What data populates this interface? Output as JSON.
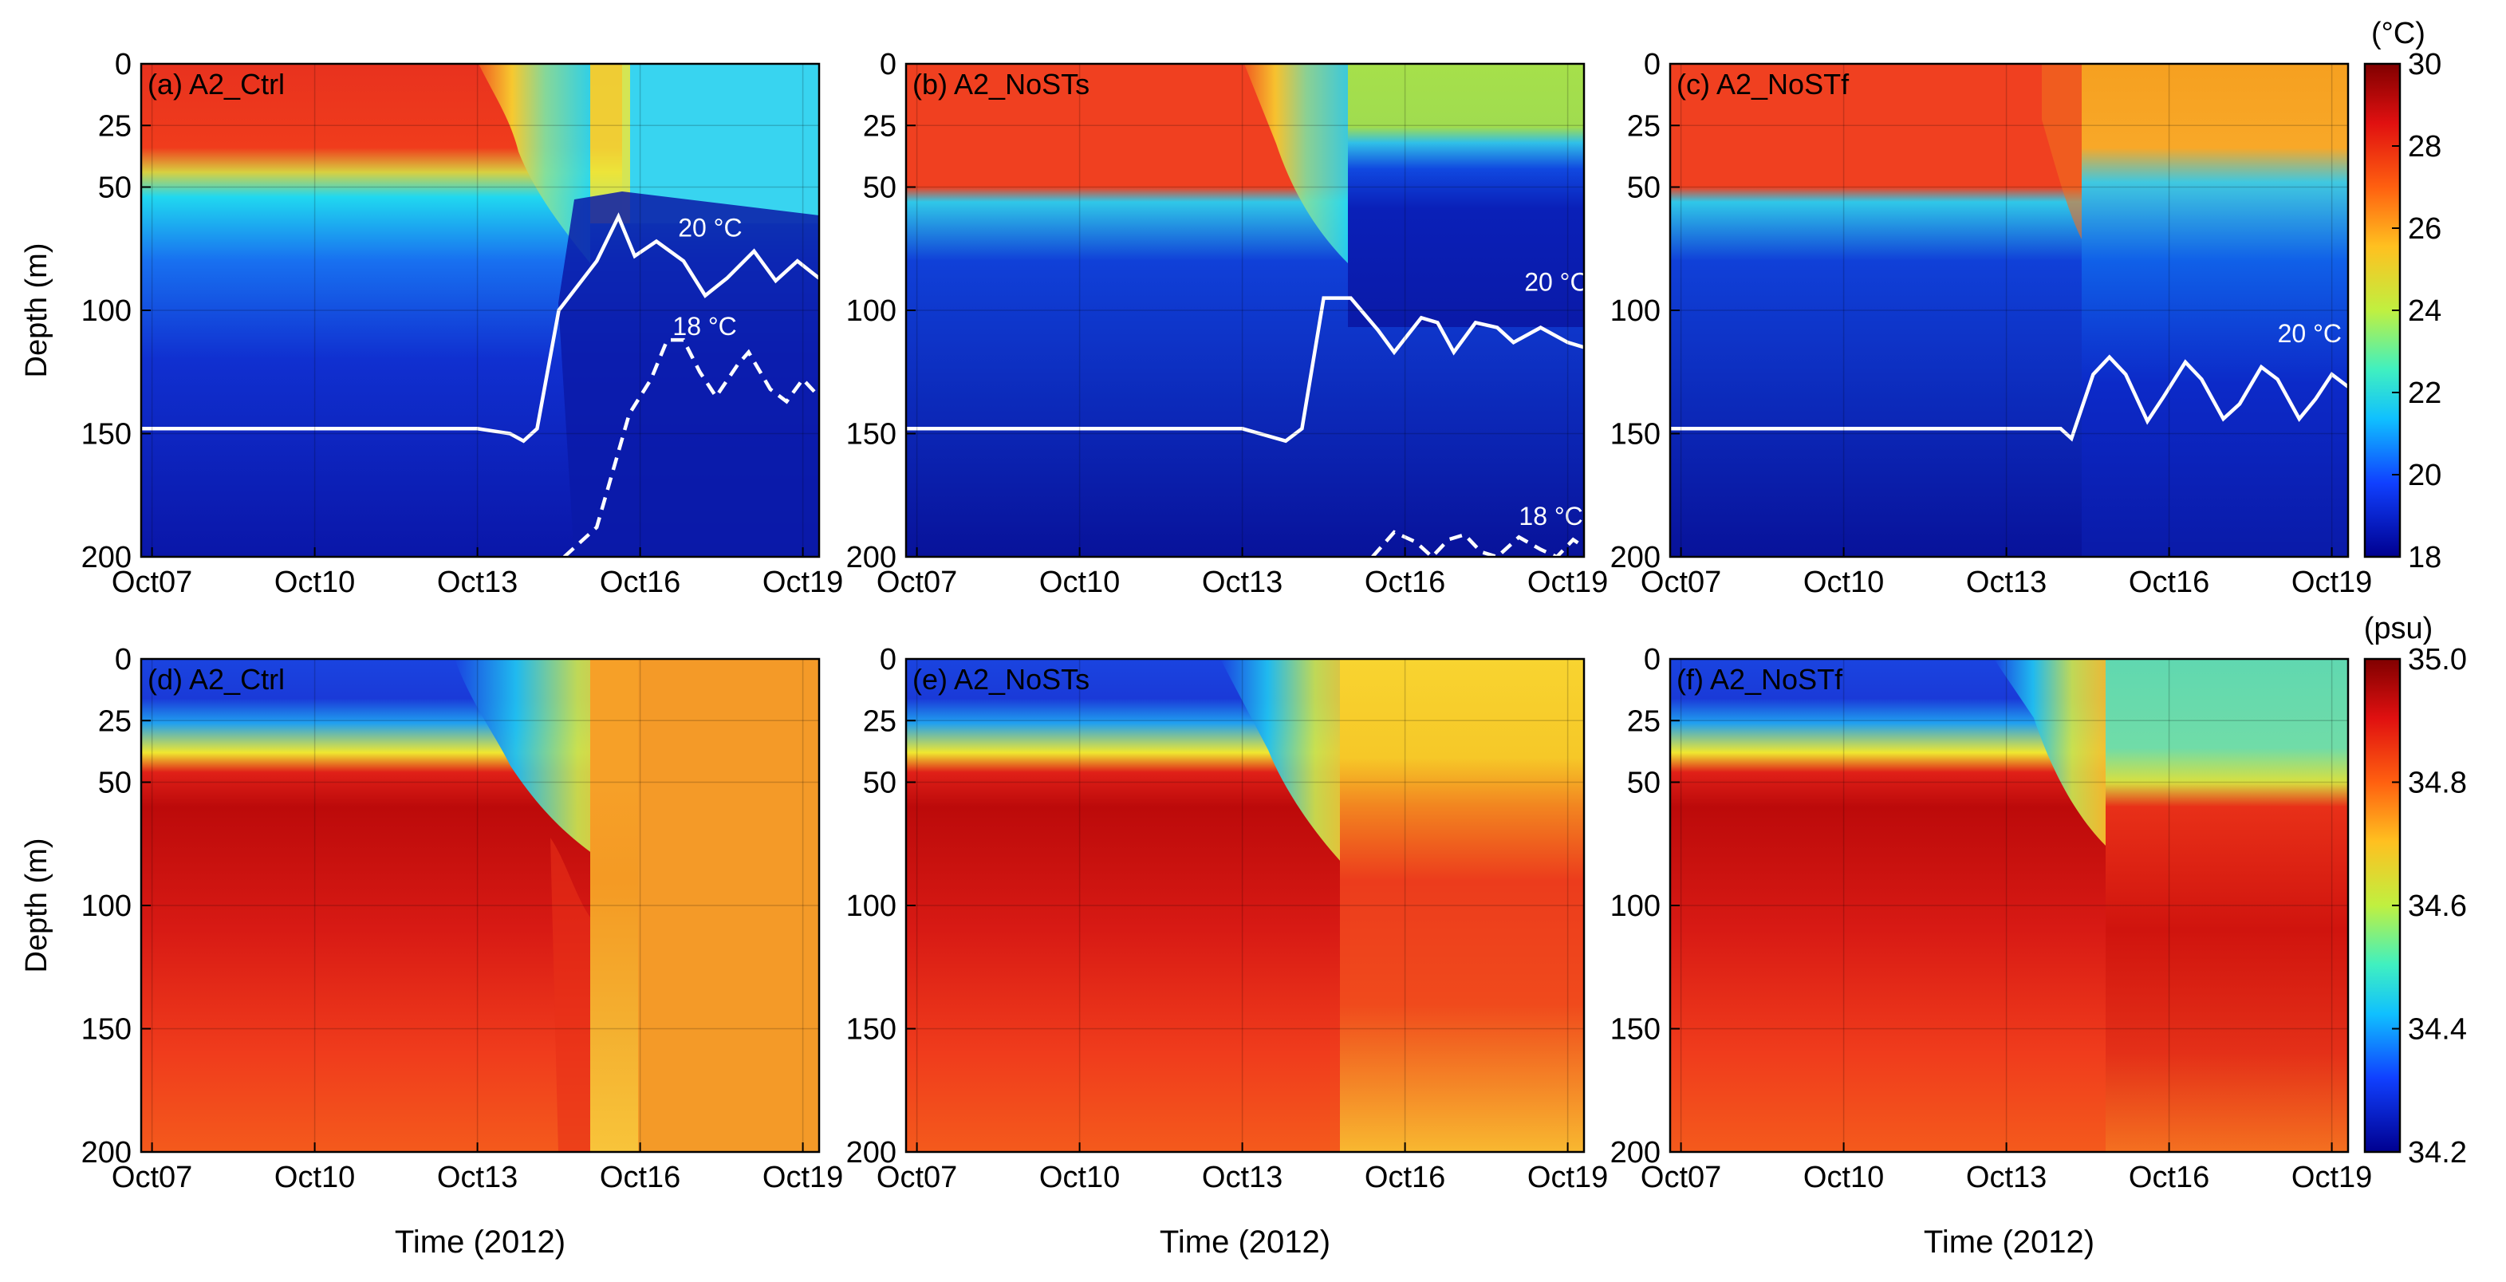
{
  "figure": {
    "time_label": "Time (2012)",
    "depth_label": "Depth (m)"
  },
  "colorbars": [
    {
      "unit": "(°C)",
      "ticks": [
        "30",
        "28",
        "26",
        "24",
        "22",
        "20",
        "18"
      ],
      "range": [
        18,
        30
      ]
    },
    {
      "unit": "(psu)",
      "ticks": [
        "35.0",
        "34.8",
        "34.6",
        "34.4",
        "34.2"
      ],
      "range": [
        34.2,
        35.0
      ]
    }
  ],
  "chart_data": [
    {
      "type": "heatmap",
      "variable": "temperature",
      "title": "(a) A2_Ctrl",
      "xlabel": "",
      "ylabel": "Depth (m)",
      "x_ticks": [
        "Oct07",
        "Oct10",
        "Oct13",
        "Oct16",
        "Oct19"
      ],
      "y_ticks": [
        "0",
        "25",
        "50",
        "100",
        "150",
        "200"
      ],
      "xlim": [
        "Oct07",
        "Oct19"
      ],
      "ylim": [
        200,
        0
      ],
      "grid": true,
      "contours": [
        {
          "label": "20 °C",
          "style": "solid",
          "points": [
            [
              6.8,
              148
            ],
            [
              10,
              148
            ],
            [
              13,
              148
            ],
            [
              13.6,
              150
            ],
            [
              13.85,
              153
            ],
            [
              14.1,
              148
            ],
            [
              14.5,
              100
            ],
            [
              15.2,
              80
            ],
            [
              15.6,
              62
            ],
            [
              15.9,
              78
            ],
            [
              16.3,
              72
            ],
            [
              16.8,
              80
            ],
            [
              17.2,
              94
            ],
            [
              17.6,
              87
            ],
            [
              18.1,
              76
            ],
            [
              18.5,
              88
            ],
            [
              18.9,
              80
            ],
            [
              19.3,
              87
            ]
          ]
        },
        {
          "label": "18 °C",
          "style": "dashed",
          "points": [
            [
              14.6,
              200
            ],
            [
              15.2,
              188
            ],
            [
              15.8,
              142
            ],
            [
              16.2,
              128
            ],
            [
              16.5,
              112
            ],
            [
              16.8,
              112
            ],
            [
              17.1,
              125
            ],
            [
              17.4,
              135
            ],
            [
              17.8,
              122
            ],
            [
              18.0,
              117
            ],
            [
              18.4,
              132
            ],
            [
              18.7,
              137
            ],
            [
              19.0,
              128
            ],
            [
              19.3,
              135
            ]
          ]
        }
      ]
    },
    {
      "type": "heatmap",
      "variable": "temperature",
      "title": "(b) A2_NoSTs",
      "xlabel": "",
      "ylabel": "",
      "x_ticks": [
        "Oct07",
        "Oct10",
        "Oct13",
        "Oct16",
        "Oct19"
      ],
      "y_ticks": [
        "0",
        "25",
        "50",
        "100",
        "150",
        "200"
      ],
      "xlim": [
        "Oct07",
        "Oct19"
      ],
      "ylim": [
        200,
        0
      ],
      "grid": true,
      "contours": [
        {
          "label": "20 °C",
          "style": "solid",
          "points": [
            [
              6.8,
              148
            ],
            [
              13,
              148
            ],
            [
              13.8,
              153
            ],
            [
              14.1,
              148
            ],
            [
              14.5,
              95
            ],
            [
              15.0,
              95
            ],
            [
              15.5,
              108
            ],
            [
              15.8,
              117
            ],
            [
              16.3,
              103
            ],
            [
              16.6,
              105
            ],
            [
              16.9,
              117
            ],
            [
              17.3,
              105
            ],
            [
              17.7,
              107
            ],
            [
              18.0,
              113
            ],
            [
              18.5,
              107
            ],
            [
              19.0,
              113
            ],
            [
              19.3,
              115
            ]
          ]
        },
        {
          "label": "18 °C",
          "style": "dashed",
          "points": [
            [
              15.4,
              200
            ],
            [
              15.8,
              190
            ],
            [
              16.2,
              194
            ],
            [
              16.5,
              200
            ],
            [
              16.8,
              193
            ],
            [
              17.1,
              191
            ],
            [
              17.4,
              198
            ],
            [
              17.7,
              200
            ],
            [
              18.1,
              192
            ],
            [
              18.5,
              197
            ],
            [
              18.8,
              200
            ],
            [
              19.1,
              193
            ],
            [
              19.3,
              196
            ]
          ]
        }
      ]
    },
    {
      "type": "heatmap",
      "variable": "temperature",
      "title": "(c) A2_NoSTf",
      "xlabel": "",
      "ylabel": "",
      "x_ticks": [
        "Oct07",
        "Oct10",
        "Oct13",
        "Oct16",
        "Oct19"
      ],
      "y_ticks": [
        "0",
        "25",
        "50",
        "100",
        "150",
        "200"
      ],
      "xlim": [
        "Oct07",
        "Oct19"
      ],
      "ylim": [
        200,
        0
      ],
      "grid": true,
      "contours": [
        {
          "label": "20 °C",
          "style": "solid",
          "points": [
            [
              6.8,
              148
            ],
            [
              14,
              148
            ],
            [
              14.2,
              152
            ],
            [
              14.6,
              126
            ],
            [
              14.9,
              119
            ],
            [
              15.2,
              126
            ],
            [
              15.6,
              145
            ],
            [
              15.9,
              135
            ],
            [
              16.3,
              121
            ],
            [
              16.6,
              128
            ],
            [
              17.0,
              144
            ],
            [
              17.3,
              138
            ],
            [
              17.7,
              123
            ],
            [
              18.0,
              128
            ],
            [
              18.4,
              144
            ],
            [
              18.7,
              136
            ],
            [
              19.0,
              126
            ],
            [
              19.3,
              131
            ]
          ]
        }
      ]
    },
    {
      "type": "heatmap",
      "variable": "salinity",
      "title": "(d) A2_Ctrl",
      "xlabel": "Time (2012)",
      "ylabel": "Depth (m)",
      "x_ticks": [
        "Oct07",
        "Oct10",
        "Oct13",
        "Oct16",
        "Oct19"
      ],
      "y_ticks": [
        "0",
        "25",
        "50",
        "100",
        "150",
        "200"
      ],
      "xlim": [
        "Oct07",
        "Oct19"
      ],
      "ylim": [
        200,
        0
      ],
      "grid": true
    },
    {
      "type": "heatmap",
      "variable": "salinity",
      "title": "(e) A2_NoSTs",
      "xlabel": "Time (2012)",
      "ylabel": "",
      "x_ticks": [
        "Oct07",
        "Oct10",
        "Oct13",
        "Oct16",
        "Oct19"
      ],
      "y_ticks": [
        "0",
        "25",
        "50",
        "100",
        "150",
        "200"
      ],
      "xlim": [
        "Oct07",
        "Oct19"
      ],
      "ylim": [
        200,
        0
      ],
      "grid": true
    },
    {
      "type": "heatmap",
      "variable": "salinity",
      "title": "(f) A2_NoSTf",
      "xlabel": "Time (2012)",
      "ylabel": "",
      "x_ticks": [
        "Oct07",
        "Oct10",
        "Oct13",
        "Oct16",
        "Oct19"
      ],
      "y_ticks": [
        "0",
        "25",
        "50",
        "100",
        "150",
        "200"
      ],
      "xlim": [
        "Oct07",
        "Oct19"
      ],
      "ylim": [
        200,
        0
      ],
      "grid": true
    }
  ]
}
